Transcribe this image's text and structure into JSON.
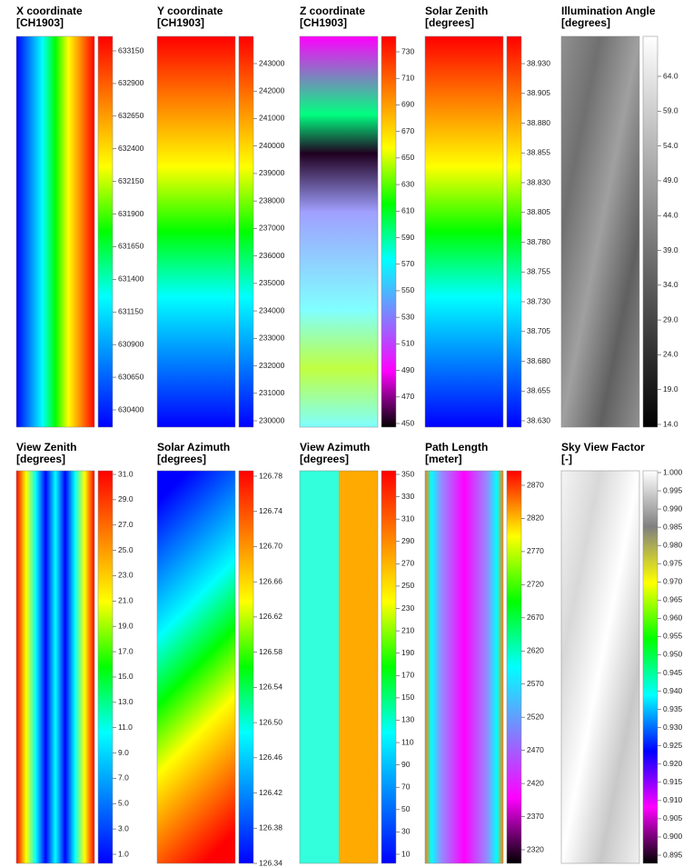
{
  "panels": [
    {
      "title": "X coordinate",
      "unit": "[CH1903]",
      "ticks": [
        "633150",
        "632900",
        "632650",
        "632400",
        "632150",
        "631900",
        "631650",
        "631400",
        "631150",
        "630900",
        "630650",
        "630400"
      ]
    },
    {
      "title": "Y coordinate",
      "unit": "[CH1903]",
      "ticks": [
        "243000",
        "242000",
        "241000",
        "240000",
        "239000",
        "238000",
        "237000",
        "236000",
        "235000",
        "234000",
        "233000",
        "232000",
        "231000",
        "230000"
      ]
    },
    {
      "title": "Z coordinate",
      "unit": "[CH1903]",
      "ticks": [
        "730",
        "710",
        "690",
        "670",
        "650",
        "630",
        "610",
        "590",
        "570",
        "550",
        "530",
        "510",
        "490",
        "470",
        "450"
      ]
    },
    {
      "title": "Solar Zenith",
      "unit": "[degrees]",
      "ticks": [
        "38.930",
        "38.905",
        "38.880",
        "38.855",
        "38.830",
        "38.805",
        "38.780",
        "38.755",
        "38.730",
        "38.705",
        "38.680",
        "38.655",
        "38.630"
      ]
    },
    {
      "title": "Illumination Angle",
      "unit": "[degrees]",
      "ticks": [
        "64.0",
        "59.0",
        "54.0",
        "49.0",
        "44.0",
        "39.0",
        "34.0",
        "29.0",
        "24.0",
        "19.0",
        "14.0"
      ]
    },
    {
      "title": "View Zenith",
      "unit": "[degrees]",
      "ticks": [
        "31.0",
        "29.0",
        "27.0",
        "25.0",
        "23.0",
        "21.0",
        "19.0",
        "17.0",
        "15.0",
        "13.0",
        "11.0",
        "9.0",
        "7.0",
        "5.0",
        "3.0",
        "1.0"
      ]
    },
    {
      "title": "Solar Azimuth",
      "unit": "[degrees]",
      "ticks": [
        "126.78",
        "126.74",
        "126.70",
        "126.66",
        "126.62",
        "126.58",
        "126.54",
        "126.50",
        "126.46",
        "126.42",
        "126.38",
        "126.34"
      ]
    },
    {
      "title": "View Azimuth",
      "unit": "[degrees]",
      "ticks": [
        "350",
        "330",
        "310",
        "290",
        "270",
        "250",
        "230",
        "210",
        "190",
        "170",
        "150",
        "130",
        "110",
        "90",
        "70",
        "50",
        "30",
        "10"
      ]
    },
    {
      "title": "Path Length",
      "unit": "[meter]",
      "ticks": [
        "2870",
        "2820",
        "2770",
        "2720",
        "2670",
        "2620",
        "2570",
        "2520",
        "2470",
        "2420",
        "2370",
        "2320"
      ]
    },
    {
      "title": "Sky View Factor",
      "unit": "[-]",
      "ticks": [
        "1.000",
        "0.995",
        "0.990",
        "0.985",
        "0.980",
        "0.975",
        "0.970",
        "0.965",
        "0.960",
        "0.955",
        "0.950",
        "0.945",
        "0.940",
        "0.935",
        "0.930",
        "0.925",
        "0.920",
        "0.915",
        "0.910",
        "0.905",
        "0.900",
        "0.895"
      ]
    }
  ]
}
